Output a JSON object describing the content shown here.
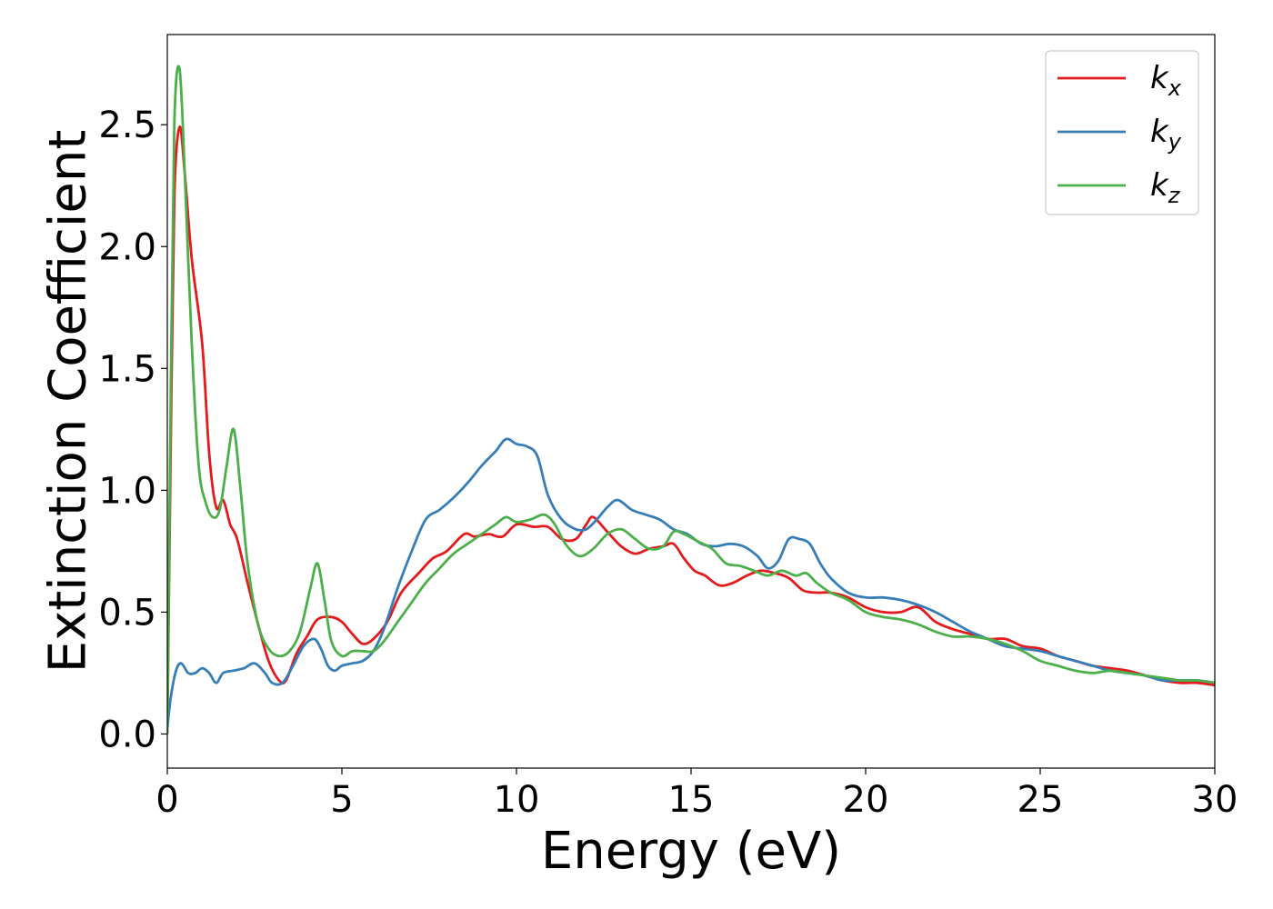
{
  "chart_data": {
    "type": "line",
    "title": "",
    "xlabel": "Energy (eV)",
    "ylabel": "Extinction Coefficient",
    "xlim": [
      0,
      30
    ],
    "ylim": [
      -0.14,
      2.87
    ],
    "xticks": [
      0,
      5,
      10,
      15,
      20,
      25,
      30
    ],
    "xtick_labels": [
      "0",
      "5",
      "10",
      "15",
      "20",
      "25",
      "30"
    ],
    "yticks": [
      0.0,
      0.5,
      1.0,
      1.5,
      2.0,
      2.5
    ],
    "ytick_labels": [
      "0.0",
      "0.5",
      "1.0",
      "1.5",
      "2.0",
      "2.5"
    ],
    "grid": false,
    "legend_position": "top-right",
    "series": [
      {
        "name": "k_x",
        "label_base": "k",
        "label_sub": "x",
        "color": "#e41a1c",
        "x": [
          0,
          0.1,
          0.2,
          0.35,
          0.5,
          0.7,
          1.0,
          1.2,
          1.4,
          1.6,
          1.8,
          2.0,
          2.3,
          2.6,
          2.9,
          3.2,
          3.4,
          3.7,
          4.0,
          4.3,
          4.7,
          5.0,
          5.3,
          5.6,
          5.9,
          6.3,
          6.7,
          7.2,
          7.6,
          8.0,
          8.5,
          8.8,
          9.2,
          9.6,
          10.0,
          10.5,
          10.9,
          11.3,
          11.7,
          12.0,
          12.2,
          12.6,
          13.0,
          13.4,
          13.8,
          14.2,
          14.5,
          14.8,
          15.1,
          15.4,
          15.8,
          16.2,
          16.6,
          17.0,
          17.4,
          17.8,
          18.2,
          18.6,
          19.0,
          19.5,
          20.0,
          20.5,
          21.0,
          21.5,
          22.0,
          22.5,
          23.0,
          23.5,
          24.0,
          24.5,
          25.0,
          25.5,
          26.0,
          26.5,
          27.0,
          27.5,
          28.0,
          28.5,
          29.0,
          29.5,
          30.0
        ],
        "y": [
          0.0,
          1.2,
          2.2,
          2.49,
          2.3,
          1.95,
          1.6,
          1.15,
          0.93,
          0.96,
          0.86,
          0.8,
          0.62,
          0.45,
          0.3,
          0.22,
          0.22,
          0.33,
          0.4,
          0.47,
          0.48,
          0.46,
          0.41,
          0.37,
          0.39,
          0.46,
          0.58,
          0.66,
          0.72,
          0.75,
          0.82,
          0.81,
          0.82,
          0.81,
          0.86,
          0.85,
          0.85,
          0.8,
          0.8,
          0.86,
          0.89,
          0.83,
          0.77,
          0.74,
          0.76,
          0.77,
          0.78,
          0.72,
          0.67,
          0.65,
          0.61,
          0.62,
          0.65,
          0.67,
          0.66,
          0.64,
          0.59,
          0.58,
          0.58,
          0.56,
          0.52,
          0.5,
          0.5,
          0.52,
          0.46,
          0.43,
          0.41,
          0.39,
          0.39,
          0.36,
          0.35,
          0.32,
          0.3,
          0.28,
          0.27,
          0.26,
          0.24,
          0.22,
          0.21,
          0.21,
          0.2
        ]
      },
      {
        "name": "k_y",
        "label_base": "k",
        "label_sub": "y",
        "color": "#377eb8",
        "x": [
          0,
          0.1,
          0.25,
          0.4,
          0.6,
          0.8,
          1.0,
          1.2,
          1.4,
          1.6,
          1.9,
          2.2,
          2.5,
          2.8,
          3.0,
          3.3,
          3.6,
          3.9,
          4.2,
          4.4,
          4.6,
          4.8,
          5.0,
          5.3,
          5.6,
          5.9,
          6.2,
          6.6,
          7.0,
          7.4,
          7.8,
          8.2,
          8.6,
          9.0,
          9.4,
          9.7,
          10.0,
          10.3,
          10.6,
          10.9,
          11.3,
          11.7,
          12.0,
          12.3,
          12.6,
          12.9,
          13.3,
          13.7,
          14.1,
          14.5,
          14.9,
          15.3,
          15.7,
          16.1,
          16.5,
          16.9,
          17.2,
          17.5,
          17.8,
          18.1,
          18.4,
          18.7,
          19.0,
          19.5,
          20.0,
          20.5,
          21.0,
          21.5,
          22.0,
          22.5,
          23.0,
          23.5,
          24.0,
          24.5,
          25.0,
          25.5,
          26.0,
          26.5,
          27.0,
          27.5,
          28.0,
          28.5,
          29.0,
          29.5,
          30.0
        ],
        "y": [
          0.02,
          0.15,
          0.26,
          0.29,
          0.25,
          0.25,
          0.27,
          0.25,
          0.21,
          0.25,
          0.26,
          0.27,
          0.29,
          0.25,
          0.21,
          0.21,
          0.28,
          0.36,
          0.39,
          0.35,
          0.28,
          0.26,
          0.28,
          0.29,
          0.3,
          0.34,
          0.43,
          0.6,
          0.75,
          0.88,
          0.92,
          0.97,
          1.03,
          1.1,
          1.16,
          1.21,
          1.19,
          1.18,
          1.14,
          0.98,
          0.88,
          0.84,
          0.84,
          0.88,
          0.93,
          0.96,
          0.92,
          0.9,
          0.88,
          0.84,
          0.82,
          0.78,
          0.77,
          0.78,
          0.77,
          0.73,
          0.68,
          0.71,
          0.8,
          0.8,
          0.78,
          0.7,
          0.64,
          0.58,
          0.56,
          0.56,
          0.55,
          0.53,
          0.5,
          0.46,
          0.42,
          0.39,
          0.36,
          0.35,
          0.34,
          0.32,
          0.3,
          0.28,
          0.26,
          0.25,
          0.24,
          0.22,
          0.22,
          0.22,
          0.21
        ]
      },
      {
        "name": "k_z",
        "label_base": "k",
        "label_sub": "z",
        "color": "#4daf4a",
        "x": [
          0,
          0.1,
          0.2,
          0.35,
          0.5,
          0.7,
          0.9,
          1.1,
          1.3,
          1.5,
          1.7,
          1.9,
          2.1,
          2.3,
          2.6,
          2.9,
          3.2,
          3.5,
          3.8,
          4.1,
          4.3,
          4.5,
          4.7,
          5.0,
          5.3,
          5.6,
          5.9,
          6.2,
          6.6,
          7.0,
          7.4,
          7.8,
          8.2,
          8.6,
          9.0,
          9.4,
          9.7,
          10.0,
          10.4,
          10.8,
          11.1,
          11.4,
          11.8,
          12.2,
          12.6,
          13.0,
          13.4,
          13.8,
          14.2,
          14.5,
          14.8,
          15.2,
          15.6,
          16.0,
          16.4,
          16.8,
          17.2,
          17.6,
          18.0,
          18.3,
          18.6,
          19.0,
          19.5,
          20.0,
          20.5,
          21.0,
          21.5,
          22.0,
          22.5,
          23.0,
          23.5,
          24.0,
          24.5,
          25.0,
          25.5,
          26.0,
          26.5,
          27.0,
          27.5,
          28.0,
          28.5,
          29.0,
          29.5,
          30.0
        ],
        "y": [
          0.0,
          1.4,
          2.5,
          2.73,
          2.3,
          1.6,
          1.1,
          0.95,
          0.89,
          0.92,
          1.1,
          1.25,
          1.0,
          0.7,
          0.45,
          0.35,
          0.32,
          0.34,
          0.42,
          0.6,
          0.7,
          0.55,
          0.38,
          0.32,
          0.34,
          0.34,
          0.34,
          0.38,
          0.46,
          0.54,
          0.62,
          0.68,
          0.74,
          0.78,
          0.82,
          0.86,
          0.89,
          0.87,
          0.88,
          0.9,
          0.86,
          0.78,
          0.73,
          0.76,
          0.82,
          0.84,
          0.8,
          0.76,
          0.77,
          0.83,
          0.82,
          0.79,
          0.76,
          0.7,
          0.69,
          0.67,
          0.65,
          0.67,
          0.65,
          0.66,
          0.62,
          0.58,
          0.55,
          0.5,
          0.48,
          0.47,
          0.45,
          0.42,
          0.4,
          0.4,
          0.39,
          0.37,
          0.34,
          0.3,
          0.28,
          0.26,
          0.25,
          0.26,
          0.25,
          0.24,
          0.23,
          0.22,
          0.22,
          0.21
        ]
      }
    ]
  }
}
